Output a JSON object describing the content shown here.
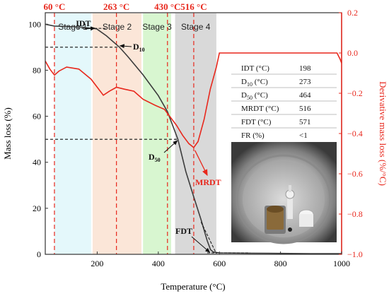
{
  "chart_data": {
    "type": "line",
    "xlabel": "Temperature (°C)",
    "ylabel": "Mass loss (%)",
    "y2label": "Derivative mass loss (%/°C)",
    "xlim": [
      30,
      1000
    ],
    "ylim": [
      0,
      105
    ],
    "y2lim": [
      -1.0,
      0.2
    ],
    "xticks": [
      200,
      400,
      600,
      800,
      1000
    ],
    "yticks": [
      0,
      20,
      40,
      60,
      80,
      100
    ],
    "y2ticks": [
      0.2,
      0.0,
      -0.2,
      -0.4,
      -0.6,
      -0.8,
      -1.0
    ],
    "y2tick_labels": [
      "0.2",
      "0.0",
      "−0.2",
      "−0.4",
      "−0.6",
      "−0.8",
      "−1.0"
    ],
    "grid": false,
    "stages": [
      {
        "label": "Stage 1",
        "x_start": 60,
        "x_end": 180,
        "color": "#e4f8fb"
      },
      {
        "label": "Stage 2",
        "x_start": 185,
        "x_end": 345,
        "color": "#fbe6d8"
      },
      {
        "label": "Stage 3",
        "x_start": 350,
        "x_end": 442,
        "color": "#d8f6d0"
      },
      {
        "label": "Stage 4",
        "x_start": 455,
        "x_end": 590,
        "color": "#d9d9d9"
      }
    ],
    "vlines": [
      {
        "x": 60,
        "label": "60 °C"
      },
      {
        "x": 263,
        "label": "263 °C"
      },
      {
        "x": 430,
        "label": "430 °C"
      },
      {
        "x": 516,
        "label": "516 °C"
      }
    ],
    "series": [
      {
        "axis": "left",
        "color": "#3c3c3c",
        "x": [
          30,
          60,
          100,
          150,
          198,
          230,
          273,
          300,
          350,
          400,
          430,
          464,
          490,
          516,
          540,
          560,
          571,
          580,
          600,
          700,
          800,
          900,
          1000
        ],
        "y": [
          100,
          99.2,
          99,
          98.7,
          98,
          95,
          90,
          86,
          78,
          69,
          62,
          50,
          36,
          25,
          15,
          6,
          2,
          1,
          0.6,
          0.5,
          0.4,
          0.3,
          0.3
        ]
      },
      {
        "axis": "right",
        "color": "#e8271c",
        "x": [
          30,
          45,
          60,
          75,
          100,
          140,
          180,
          220,
          240,
          263,
          290,
          320,
          350,
          390,
          420,
          440,
          460,
          480,
          500,
          516,
          530,
          550,
          570,
          590,
          600,
          700,
          800,
          900,
          985,
          995,
          1000
        ],
        "y": [
          -0.04,
          -0.08,
          -0.11,
          -0.09,
          -0.07,
          -0.08,
          -0.13,
          -0.21,
          -0.19,
          -0.17,
          -0.18,
          -0.19,
          -0.23,
          -0.26,
          -0.28,
          -0.32,
          -0.36,
          -0.41,
          -0.45,
          -0.47,
          -0.44,
          -0.33,
          -0.18,
          -0.07,
          0.0,
          0.0,
          0.0,
          0.0,
          0.0,
          -0.03,
          -0.05
        ]
      }
    ],
    "dashed_guides": [
      {
        "y": 90,
        "x_from": 30,
        "x_to": 273,
        "label": "D10"
      },
      {
        "y": 50,
        "x_from": 30,
        "x_to": 464,
        "label": "D50"
      }
    ],
    "annotations": {
      "idt": "IDT",
      "d10_main": "D",
      "d10_sub": "10",
      "d50_main": "D",
      "d50_sub": "50",
      "fdt": "FDT",
      "mrdt": "MRDT"
    },
    "table": {
      "rows": [
        {
          "main": "IDT (°C)",
          "sub": "",
          "tail": "",
          "value": "198"
        },
        {
          "main": "D",
          "sub": "10",
          "tail": " (°C)",
          "value": "273"
        },
        {
          "main": "D",
          "sub": "50",
          "tail": " (°C)",
          "value": "464"
        },
        {
          "main": "MRDT (°C)",
          "sub": "",
          "tail": "",
          "value": "516"
        },
        {
          "main": "FDT (°C)",
          "sub": "",
          "tail": "",
          "value": "571"
        },
        {
          "main": "FR (%)",
          "sub": "",
          "tail": "",
          "value": "<1"
        }
      ]
    }
  }
}
